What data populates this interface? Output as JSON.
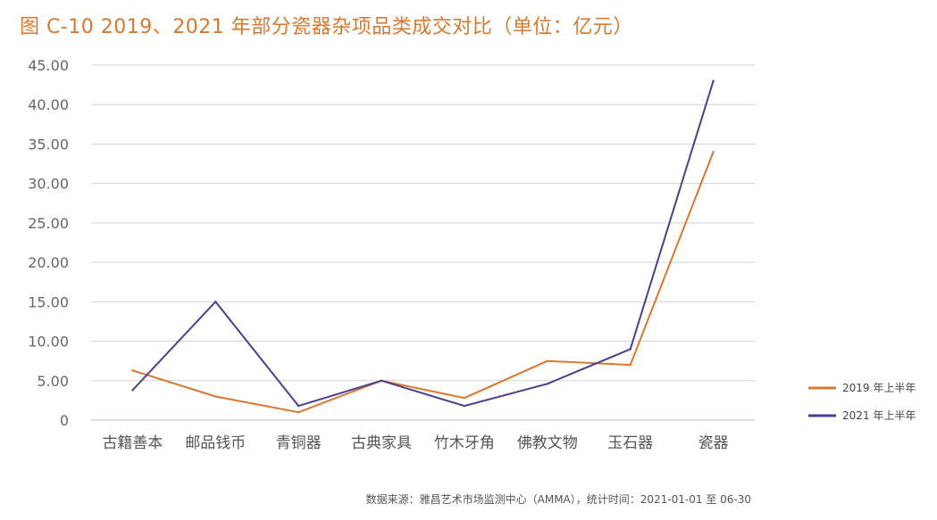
{
  "title": "图 C-10  2019、2021 年部分瓷器杂项品类成交对比（单位：亿元）",
  "source": "数据来源：雅昌艺术市场监测中心（AMMA），统计时间：2021-01-01 至 06-30",
  "chart_data": {
    "type": "line",
    "title": "图 C-10  2019、2021 年部分瓷器杂项品类成交对比（单位：亿元）",
    "categories": [
      "古籍善本",
      "邮品钱币",
      "青铜器",
      "古典家具",
      "竹木牙角",
      "佛教文物",
      "玉石器",
      "瓷器"
    ],
    "y_ticks": [
      "0",
      "5.00",
      "10.00",
      "15.00",
      "20.00",
      "25.00",
      "30.00",
      "35.00",
      "40.00",
      "45.00"
    ],
    "ylim": [
      0,
      45
    ],
    "grid": true,
    "legend_position": "right",
    "series": [
      {
        "name": "2019 年上半年",
        "color": "#d9782f",
        "values": [
          6.3,
          3.0,
          1.0,
          5.0,
          2.8,
          7.5,
          7.0,
          34.0
        ]
      },
      {
        "name": "2021 年上半年",
        "color": "#4b3f8f",
        "values": [
          3.8,
          15.0,
          1.8,
          5.0,
          1.8,
          4.6,
          9.0,
          43.0
        ]
      }
    ]
  }
}
